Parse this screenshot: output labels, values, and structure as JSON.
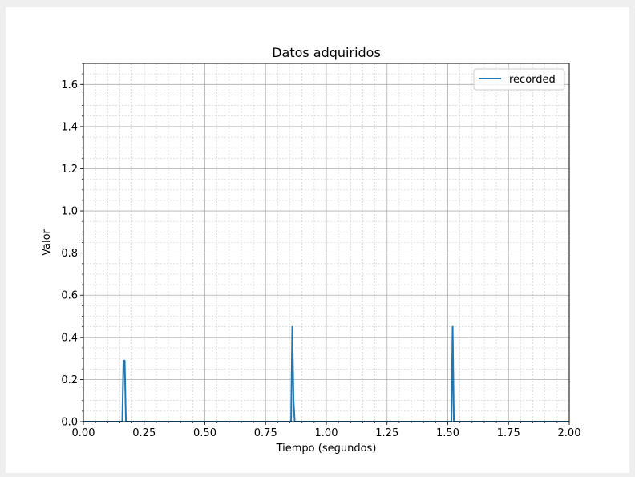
{
  "chart_data": {
    "type": "line",
    "title": "Datos adquiridos",
    "xlabel": "Tiempo (segundos)",
    "ylabel": "Valor",
    "xlim": [
      0,
      2
    ],
    "ylim": [
      0,
      1.7
    ],
    "xticks": [
      "0.00",
      "0.25",
      "0.50",
      "0.75",
      "1.00",
      "1.25",
      "1.50",
      "1.75",
      "2.00"
    ],
    "yticks": [
      "0.0",
      "0.2",
      "0.4",
      "0.6",
      "0.8",
      "1.0",
      "1.2",
      "1.4",
      "1.6"
    ],
    "grid": true,
    "minor_grid": true,
    "legend": "top-right",
    "series": [
      {
        "name": "recorded",
        "color": "#1f77b4",
        "x": [
          0.0,
          0.16,
          0.165,
          0.17,
          0.175,
          0.855,
          0.86,
          0.865,
          0.87,
          1.515,
          1.52,
          1.525,
          2.0
        ],
        "y": [
          0.0,
          0.0,
          0.29,
          0.29,
          0.0,
          0.0,
          0.45,
          0.1,
          0.0,
          0.0,
          0.45,
          0.0,
          0.0
        ]
      }
    ]
  }
}
